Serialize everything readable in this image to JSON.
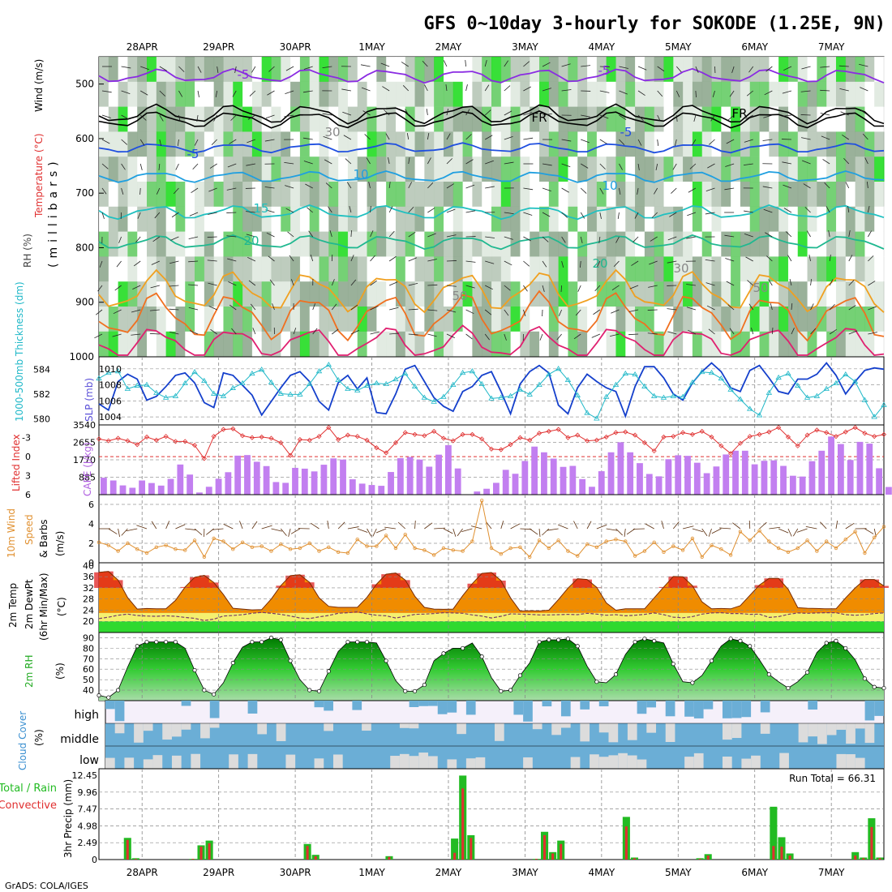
{
  "title": "GFS 0~10day 3-hourly for SOKODE (1.25E, 9N)",
  "footer": "GrADS: COLA/IGES",
  "chart_data": {
    "type": "meteogram",
    "dates": [
      "28APR",
      "29APR",
      "30APR",
      "1MAY",
      "2MAY",
      "3MAY",
      "4MAY",
      "5MAY",
      "6MAY",
      "7MAY"
    ],
    "colors": {
      "rh_dark": "#8fa88f",
      "rh_mid": "#b7c6b7",
      "rh_light": "#dfe9df",
      "rh_green": "#66cc66",
      "rh_bright": "#22dd22",
      "temp_m5": "#8a2be2",
      "temp_5": "#1f4fe0",
      "temp_10": "#1f9fe0",
      "temp_15": "#20c0c0",
      "temp_20": "#20b890",
      "temp_25": "#f0a020",
      "temp_30": "#f07020",
      "temp_35": "#e02070",
      "thickness": "#1540cc",
      "slp": "#20b8c8",
      "lifted": "#e03030",
      "cape": "#c27ff0",
      "wind": "#e09030",
      "barb": "#5a2d0c",
      "tmax": "#e02020",
      "tband": "#f08c00",
      "tband2": "#f8c040",
      "tyellow": "#f4f070",
      "tgreen": "#2fd92f",
      "rh2m_dark": "#008a00",
      "rh2m_light": "#80d880",
      "cloud": "#6baed6",
      "cloud_clear": "#dcdcdc",
      "precip_total": "#22bb22",
      "precip_conv": "#e03030"
    },
    "panels": [
      {
        "id": "upper_air",
        "label_rh": "RH (%)",
        "label_temp": "Temperature (°C)",
        "label_wind": "Wind (m/s)",
        "ylabel": "(millibars)",
        "yticks": [
          "500",
          "600",
          "700",
          "800",
          "900",
          "1000"
        ],
        "contour_labels": [
          "-5",
          "-5",
          "FR",
          "FR",
          "-5",
          "-5",
          "10",
          "10",
          "15",
          "20",
          "20",
          "50",
          "30",
          "50",
          "30"
        ]
      },
      {
        "id": "thickness_slp",
        "label_thk": "1000-500mb Thickness (dm)",
        "label_slp": "SLP (mb)",
        "thk_ticks": [
          "584",
          "582",
          "580"
        ],
        "slp_ticks": [
          "1010",
          "1008",
          "1006",
          "1004"
        ],
        "thickness_dm": [
          581.2,
          580.7,
          583.0,
          583.6,
          583.2,
          581.5,
          581.8,
          582.6,
          583.5,
          583.7,
          582.9,
          581.3,
          580.9,
          583.7,
          583.5,
          582.7,
          581.9,
          580.3,
          581.4,
          582.5,
          583.5,
          583.8,
          583.0,
          581.4,
          580.7,
          582.9,
          583.5,
          582.4,
          583.3,
          580.5,
          580.4,
          582.0,
          584.0,
          584.3,
          583.0,
          581.7,
          581.0,
          580.6,
          582.2,
          582.6,
          583.5,
          583.8,
          582.2,
          580.4,
          582.8,
          583.8,
          584.3,
          583.7,
          581.1,
          580.4,
          582.5,
          583.6,
          583.0,
          582.5,
          582.2,
          580.2,
          582.6,
          584.2,
          584.2,
          583.3,
          582.0,
          581.5,
          582.9,
          583.8,
          584.5,
          583.8,
          582.5,
          582.2,
          583.9,
          584.3,
          583.3,
          582.2,
          582.0,
          583.2,
          583.2,
          583.6,
          584.5,
          583.5,
          582.0,
          583.0,
          583.9,
          584.1,
          584.0
        ],
        "slp_mb": [
          1008.8,
          1009.5,
          1009.7,
          1007.5,
          1007.9,
          1008.0,
          1007.0,
          1006.4,
          1006.6,
          1008.2,
          1009.6,
          1008.5,
          1006.9,
          1006.6,
          1007.6,
          1008.2,
          1009.4,
          1009.9,
          1008.3,
          1006.9,
          1006.8,
          1006.8,
          1008.1,
          1009.7,
          1010.5,
          1008.6,
          1007.5,
          1007.3,
          1007.9,
          1008.2,
          1008.1,
          1008.7,
          1009.4,
          1007.8,
          1006.4,
          1005.9,
          1006.5,
          1008.0,
          1009.5,
          1009.7,
          1008.1,
          1006.3,
          1006.4,
          1006.6,
          1007.4,
          1006.8,
          1008.0,
          1009.3,
          1010.0,
          1008.6,
          1006.7,
          1004.5,
          1003.8,
          1006.5,
          1008.0,
          1009.4,
          1009.3,
          1007.8,
          1006.6,
          1006.4,
          1006.6,
          1006.5,
          1008.3,
          1009.6,
          1009.5,
          1008.8,
          1007.4,
          1006.2,
          1005.0,
          1004.2,
          1007.0,
          1008.9,
          1009.4,
          1007.9,
          1006.4,
          1006.6,
          1007.5,
          1008.2,
          1009.3,
          1008.4,
          1006.1,
          1004.0,
          1005.5
        ]
      },
      {
        "id": "cape_li",
        "label_li": "Lifted Index",
        "label_cape": "CAPE (J/kg)",
        "li_ticks": [
          "-3",
          "0",
          "3",
          "6"
        ],
        "cape_ticks": [
          "3540",
          "2655",
          "1770",
          "885"
        ],
        "lifted_index": [
          -2.8,
          -2.5,
          -2.9,
          -2.5,
          -1.9,
          -3.1,
          -2.6,
          -3.2,
          -2.4,
          -2.4,
          -1.8,
          0.3,
          -3.2,
          -4.3,
          -4.4,
          -3.3,
          -3.0,
          -3.1,
          -2.9,
          -2.2,
          -0.2,
          -2.7,
          -2.6,
          -3.2,
          -4.6,
          -2.7,
          -3.4,
          -3.2,
          -2.6,
          -1.4,
          -0.6,
          -2.2,
          -3.8,
          -3.5,
          -3.3,
          -4.0,
          -2.9,
          -2.5,
          -3.5,
          -3.5,
          -2.8,
          -1.2,
          -1.1,
          -1.9,
          -3.0,
          -2.6,
          -3.7,
          -4.0,
          -4.3,
          -3.0,
          -3.4,
          -2.5,
          -2.6,
          -3.1,
          -3.8,
          -3.9,
          -3.4,
          -2.2,
          -0.9,
          -3.1,
          -3.2,
          -3.8,
          -3.5,
          -4.0,
          -3.1,
          -1.7,
          -0.5,
          -2.1,
          -3.2,
          -3.5,
          -3.9,
          -4.6,
          -3.1,
          -1.7,
          -3.4,
          -4.2,
          -3.8,
          -3.2,
          -3.9,
          -4.6,
          -3.7,
          -3.2,
          -3.5
        ],
        "cape_jkg": [
          860,
          720,
          470,
          350,
          720,
          590,
          460,
          800,
          1530,
          1020,
          110,
          400,
          810,
          1140,
          1980,
          2010,
          1670,
          1450,
          640,
          600,
          1360,
          1320,
          1180,
          1520,
          1840,
          1780,
          780,
          560,
          490,
          450,
          1150,
          1850,
          1910,
          1780,
          1420,
          2030,
          2510,
          1330,
          0,
          160,
          300,
          600,
          1260,
          1060,
          1710,
          2440,
          2150,
          1830,
          1410,
          1460,
          790,
          400,
          1190,
          2150,
          2660,
          2150,
          1600,
          1050,
          930,
          1800,
          2000,
          1970,
          1620,
          1090,
          1430,
          2040,
          2230,
          2230,
          1540,
          1720,
          1740,
          1460,
          960,
          920,
          1700,
          2230,
          2950,
          2570,
          1760,
          2680,
          2590,
          1340,
          390
        ]
      },
      {
        "id": "wind10m",
        "label_wind": "10m Wind",
        "label_speed": "Speed",
        "label_barbs": "& Barbs",
        "unit": "(m/s)",
        "yticks": [
          "6",
          "4",
          "2",
          "0"
        ],
        "speed_ms": [
          2.1,
          1.8,
          1.2,
          2.0,
          1.4,
          1.0,
          1.6,
          1.8,
          1.4,
          1.3,
          2.3,
          0.6,
          2.5,
          2.2,
          1.4,
          2.1,
          1.6,
          1.7,
          1.2,
          1.9,
          1.4,
          1.5,
          2.0,
          1.2,
          1.6,
          1.1,
          1.0,
          2.4,
          1.7,
          1.7,
          2.8,
          1.5,
          2.9,
          1.5,
          1.3,
          0.8,
          1.5,
          1.3,
          1.2,
          2.2,
          6.4,
          1.5,
          0.9,
          1.5,
          1.6,
          0.6,
          2.3,
          1.5,
          2.3,
          1.2,
          0.7,
          1.9,
          1.6,
          2.2,
          2.4,
          2.2,
          0.7,
          1.2,
          2.1,
          1.1,
          1.7,
          1.3,
          2.5,
          0.6,
          1.8,
          1.4,
          0.8,
          3.2,
          2.3,
          3.3,
          2.2,
          1.5,
          1.1,
          1.5,
          2.3,
          1.2,
          2.2,
          1.5,
          2.4,
          3.2,
          1.0,
          2.6,
          3.7
        ]
      },
      {
        "id": "temp2m",
        "label_temp": "2m Temp",
        "label_dewpt": "2m DewPt",
        "label_minmax": "(6hr Min/Max)",
        "unit": "(°C)",
        "yticks": [
          "40",
          "36",
          "32",
          "28",
          "24",
          "20"
        ],
        "temp_c": [
          37.6,
          37.9,
          34.8,
          28.5,
          24.4,
          24.6,
          24.5,
          24.5,
          27.5,
          32.3,
          35.8,
          36.5,
          33.9,
          29.6,
          24.7,
          24.4,
          24.1,
          24.2,
          28.0,
          32.8,
          36.4,
          36.7,
          34.0,
          28.4,
          25.4,
          25.0,
          25.0,
          25.0,
          28.6,
          33.3,
          36.9,
          37.3,
          34.8,
          29.0,
          25.0,
          24.4,
          24.3,
          24.4,
          29.2,
          33.5,
          37.2,
          37.5,
          34.6,
          28.4,
          23.7,
          23.8,
          23.7,
          24.0,
          27.8,
          31.9,
          35.3,
          35.0,
          32.2,
          26.6,
          24.0,
          24.5,
          24.5,
          24.5,
          28.4,
          32.3,
          36.1,
          36.0,
          32.8,
          27.0,
          24.5,
          24.6,
          24.5,
          25.6,
          29.3,
          33.0,
          35.4,
          35.4,
          31.5,
          24.9,
          24.7,
          24.6,
          24.5,
          24.5,
          28.4,
          32.0,
          35.0,
          35.0,
          32.7
        ],
        "dewpoint_c": [
          21.0,
          21.5,
          22.2,
          22.6,
          22.1,
          21.9,
          21.8,
          22.0,
          21.8,
          21.4,
          21.1,
          20.3,
          20.8,
          21.9,
          22.1,
          22.4,
          22.9,
          23.2,
          22.9,
          22.5,
          21.9,
          21.2,
          21.0,
          21.6,
          22.1,
          22.9,
          23.1,
          23.4,
          22.7,
          22.2,
          22.0,
          21.2,
          21.8,
          22.5,
          22.6,
          22.8,
          23.1,
          23.0,
          22.9,
          22.3,
          21.9,
          21.2,
          21.8,
          22.7,
          22.6,
          22.5,
          22.3,
          22.3,
          22.4,
          22.5,
          22.4,
          22.9,
          22.6,
          22.2,
          22.4,
          22.0,
          22.2,
          22.5,
          23.0,
          22.4,
          21.5,
          21.3,
          21.7,
          22.6,
          23.0,
          23.1,
          22.8,
          22.8,
          22.5,
          22.6,
          21.4,
          21.7,
          22.5,
          23.0,
          22.9,
          23.0,
          23.1,
          23.1,
          22.4,
          22.2,
          22.4,
          22.8,
          23.0
        ]
      },
      {
        "id": "rh2m",
        "label": "2m RH",
        "unit": "(%)",
        "yticks": [
          "90",
          "80",
          "70",
          "60",
          "50",
          "40"
        ],
        "rh_pct": [
          35,
          33,
          40,
          62,
          82,
          86,
          86,
          86,
          86,
          80,
          59,
          40,
          36,
          47,
          66,
          81,
          86,
          86,
          90,
          88,
          68,
          50,
          40,
          39,
          58,
          77,
          86,
          86,
          86,
          85,
          68,
          49,
          39,
          39,
          45,
          68,
          75,
          80,
          80,
          85,
          72,
          52,
          39,
          40,
          54,
          66,
          86,
          88,
          88,
          89,
          82,
          63,
          48,
          47,
          55,
          74,
          86,
          89,
          87,
          85,
          65,
          48,
          47,
          54,
          68,
          82,
          89,
          87,
          82,
          69,
          55,
          48,
          42,
          48,
          57,
          76,
          85,
          87,
          80,
          69,
          51,
          43,
          42
        ]
      },
      {
        "id": "cloud",
        "label": "Cloud Cover",
        "unit": "(%)",
        "levels": [
          "high",
          "middle",
          "low"
        ]
      },
      {
        "id": "precip",
        "label_total": "Total / Rain",
        "label_conv": "Convective",
        "ylabel": "3hr Precip (mm)",
        "yticks": [
          "12.45",
          "9.96",
          "7.47",
          "4.98",
          "2.49",
          "0"
        ],
        "run_total": "Run Total = 66.31",
        "total_mm": [
          0,
          0,
          0,
          3.2,
          0.2,
          0,
          0,
          0,
          0,
          0,
          0,
          0.1,
          2.1,
          2.8,
          0,
          0,
          0,
          0,
          0,
          0,
          0,
          0,
          0,
          0,
          0,
          2.3,
          0.7,
          0,
          0,
          0,
          0,
          0,
          0,
          0,
          0,
          0.5,
          0,
          0,
          0,
          0,
          0,
          0,
          0,
          3.1,
          12.4,
          3.6,
          0,
          0,
          0,
          0,
          0,
          0,
          0,
          0.1,
          4.1,
          1.1,
          2.8,
          0,
          0,
          0,
          0,
          0,
          0,
          0,
          6.3,
          0.3,
          0,
          0,
          0,
          0,
          0,
          0,
          0,
          0.2,
          0.8,
          0,
          0,
          0,
          0,
          0,
          0,
          0,
          7.8,
          3.3,
          0.9,
          0,
          0,
          0,
          0,
          0,
          0,
          0,
          1.1,
          0.3,
          6.1,
          0.3
        ],
        "conv_mm": [
          0,
          0,
          0,
          2.9,
          0.1,
          0,
          0,
          0,
          0,
          0,
          0,
          0.1,
          1.9,
          2.4,
          0,
          0,
          0,
          0,
          0,
          0,
          0,
          0,
          0,
          0,
          0,
          2.0,
          0.5,
          0,
          0,
          0,
          0,
          0,
          0,
          0,
          0,
          0.4,
          0,
          0,
          0,
          0,
          0,
          0,
          0,
          1.0,
          10.5,
          3.2,
          0,
          0,
          0,
          0,
          0,
          0,
          0,
          0.1,
          3.6,
          0.9,
          2.3,
          0,
          0,
          0,
          0,
          0,
          0,
          0,
          4.9,
          0.2,
          0,
          0,
          0,
          0,
          0,
          0,
          0,
          0.1,
          0.6,
          0,
          0,
          0,
          0,
          0,
          0,
          0,
          2.0,
          1.9,
          0.6,
          0,
          0,
          0,
          0,
          0,
          0,
          0,
          0.6,
          0.2,
          4.8,
          0.2
        ]
      }
    ]
  }
}
